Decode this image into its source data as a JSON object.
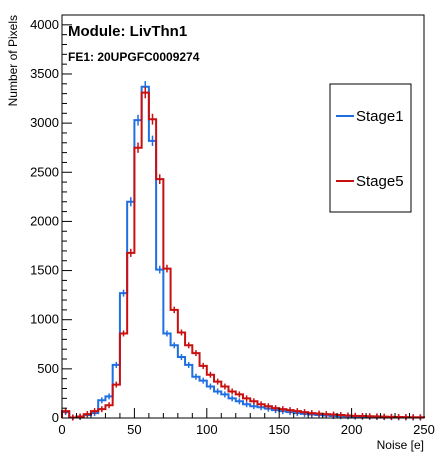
{
  "chart_data": {
    "type": "histogram",
    "xlabel": "Noise [e]",
    "ylabel": "Number of Pixels",
    "xlim": [
      0,
      250
    ],
    "ylim": [
      0,
      4100
    ],
    "x_ticks": [
      0,
      50,
      100,
      150,
      200,
      250
    ],
    "y_ticks": [
      0,
      500,
      1000,
      1500,
      2000,
      2500,
      3000,
      3500,
      4000
    ],
    "bin_width": 5,
    "bin_start": 0,
    "annotations": [
      "Module: LivThn1",
      "FE1: 20UPGFC0009274"
    ],
    "legend": {
      "position": "right",
      "entries": [
        "Stage1",
        "Stage5"
      ]
    },
    "series": [
      {
        "name": "Stage1",
        "color": "#1f6fe0",
        "values": [
          60,
          5,
          10,
          30,
          50,
          180,
          220,
          540,
          1270,
          2200,
          3030,
          3370,
          2820,
          1510,
          860,
          740,
          620,
          540,
          420,
          380,
          320,
          270,
          240,
          200,
          170,
          140,
          120,
          110,
          95,
          80,
          70,
          60,
          50,
          42,
          35,
          30,
          25,
          20,
          18,
          16,
          14,
          12,
          11,
          10,
          9,
          8,
          7,
          6,
          5,
          5
        ]
      },
      {
        "name": "Stage5",
        "color": "#c81010",
        "values": [
          70,
          5,
          15,
          40,
          70,
          90,
          130,
          340,
          860,
          1680,
          2750,
          3310,
          3040,
          2430,
          1520,
          1100,
          870,
          740,
          660,
          530,
          440,
          370,
          320,
          270,
          240,
          200,
          170,
          140,
          120,
          100,
          90,
          80,
          70,
          60,
          50,
          45,
          40,
          35,
          30,
          25,
          22,
          20,
          18,
          16,
          14,
          12,
          10,
          9,
          8,
          7
        ]
      }
    ]
  }
}
